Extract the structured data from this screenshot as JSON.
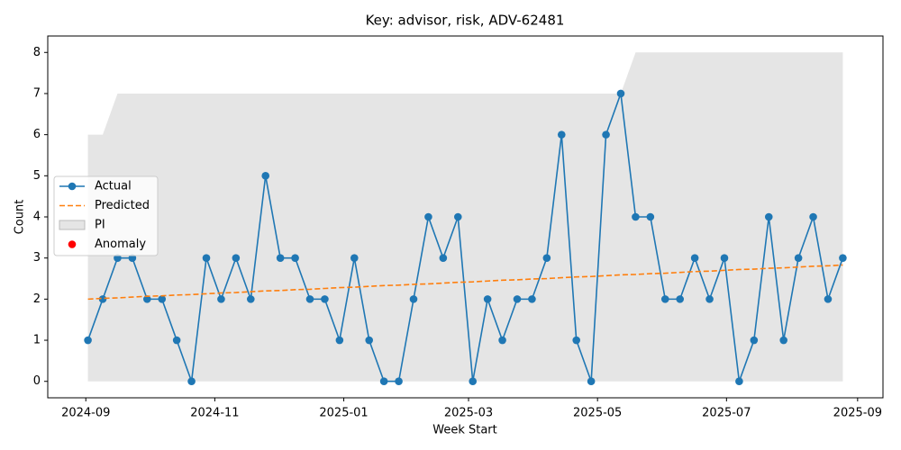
{
  "chart_data": {
    "type": "line",
    "title": "Key: advisor, risk, ADV-62481",
    "x_label": "Week Start",
    "y_label": "Count",
    "x": [
      "2024-09-02",
      "2024-09-09",
      "2024-09-16",
      "2024-09-23",
      "2024-09-30",
      "2024-10-07",
      "2024-10-14",
      "2024-10-21",
      "2024-10-28",
      "2024-11-04",
      "2024-11-11",
      "2024-11-18",
      "2024-11-25",
      "2024-12-02",
      "2024-12-09",
      "2024-12-16",
      "2024-12-23",
      "2024-12-30",
      "2025-01-06",
      "2025-01-13",
      "2025-01-20",
      "2025-01-27",
      "2025-02-03",
      "2025-02-10",
      "2025-02-17",
      "2025-02-24",
      "2025-03-03",
      "2025-03-10",
      "2025-03-17",
      "2025-03-24",
      "2025-03-31",
      "2025-04-07",
      "2025-04-14",
      "2025-04-21",
      "2025-04-28",
      "2025-05-05",
      "2025-05-12",
      "2025-05-19",
      "2025-05-26",
      "2025-06-02",
      "2025-06-09",
      "2025-06-16",
      "2025-06-23",
      "2025-06-30",
      "2025-07-07",
      "2025-07-14",
      "2025-07-21",
      "2025-07-28",
      "2025-08-04",
      "2025-08-11",
      "2025-08-18",
      "2025-08-25"
    ],
    "series": [
      {
        "name": "Actual",
        "color": "#1f77b4",
        "style": "solid",
        "marker": true,
        "values": [
          1,
          2,
          3,
          3,
          2,
          2,
          1,
          0,
          3,
          2,
          3,
          2,
          5,
          3,
          3,
          2,
          2,
          1,
          3,
          1,
          0,
          0,
          2,
          4,
          3,
          4,
          0,
          2,
          1,
          2,
          2,
          3,
          6,
          1,
          0,
          6,
          7,
          4,
          4,
          2,
          2,
          3,
          2,
          3,
          0,
          1,
          4,
          1,
          3,
          4,
          2,
          3
        ]
      },
      {
        "name": "Predicted",
        "color": "#ff7f0e",
        "style": "dashed",
        "marker": false,
        "values": [
          2.0,
          2.02,
          2.03,
          2.05,
          2.07,
          2.08,
          2.1,
          2.11,
          2.13,
          2.15,
          2.16,
          2.18,
          2.2,
          2.21,
          2.23,
          2.24,
          2.26,
          2.28,
          2.29,
          2.31,
          2.33,
          2.34,
          2.36,
          2.37,
          2.39,
          2.41,
          2.42,
          2.44,
          2.46,
          2.47,
          2.49,
          2.5,
          2.52,
          2.54,
          2.55,
          2.57,
          2.59,
          2.6,
          2.62,
          2.63,
          2.65,
          2.67,
          2.68,
          2.7,
          2.72,
          2.73,
          2.75,
          2.76,
          2.78,
          2.8,
          2.81,
          2.83
        ]
      }
    ],
    "band": {
      "name": "PI",
      "color": "#d3d3d3",
      "lower": [
        0,
        0,
        0,
        0,
        0,
        0,
        0,
        0,
        0,
        0,
        0,
        0,
        0,
        0,
        0,
        0,
        0,
        0,
        0,
        0,
        0,
        0,
        0,
        0,
        0,
        0,
        0,
        0,
        0,
        0,
        0,
        0,
        0,
        0,
        0,
        0,
        0,
        0,
        0,
        0,
        0,
        0,
        0,
        0,
        0,
        0,
        0,
        0,
        0,
        0,
        0,
        0
      ],
      "upper": [
        6,
        6,
        7,
        7,
        7,
        7,
        7,
        7,
        7,
        7,
        7,
        7,
        7,
        7,
        7,
        7,
        7,
        7,
        7,
        7,
        7,
        7,
        7,
        7,
        7,
        7,
        7,
        7,
        7,
        7,
        7,
        7,
        7,
        7,
        7,
        7,
        7,
        8,
        8,
        8,
        8,
        8,
        8,
        8,
        8,
        8,
        8,
        8,
        8,
        8,
        8,
        8
      ]
    },
    "anomalies": {
      "name": "Anomaly",
      "color": "#ff0000",
      "values": [
        null,
        null,
        null,
        null,
        null,
        null,
        null,
        null,
        null,
        null,
        null,
        null,
        null,
        null,
        null,
        null,
        null,
        null,
        null,
        null,
        null,
        null,
        null,
        null,
        null,
        null,
        null,
        null,
        null,
        null,
        null,
        null,
        null,
        null,
        null,
        null,
        null,
        null,
        null,
        null,
        null,
        null,
        null,
        null,
        null,
        null,
        null,
        null,
        null,
        null,
        null,
        null
      ]
    },
    "xlim": [
      "2024-08-14",
      "2025-09-13"
    ],
    "xticks": [
      {
        "value": "2024-09-01",
        "label": "2024-09"
      },
      {
        "value": "2024-11-01",
        "label": "2024-11"
      },
      {
        "value": "2025-01-01",
        "label": "2025-01"
      },
      {
        "value": "2025-03-01",
        "label": "2025-03"
      },
      {
        "value": "2025-05-01",
        "label": "2025-05"
      },
      {
        "value": "2025-07-01",
        "label": "2025-07"
      },
      {
        "value": "2025-09-01",
        "label": "2025-09"
      }
    ],
    "ylim": [
      -0.4,
      8.4
    ],
    "yticks": [
      0,
      1,
      2,
      3,
      4,
      5,
      6,
      7,
      8
    ],
    "legend": "center-left"
  }
}
